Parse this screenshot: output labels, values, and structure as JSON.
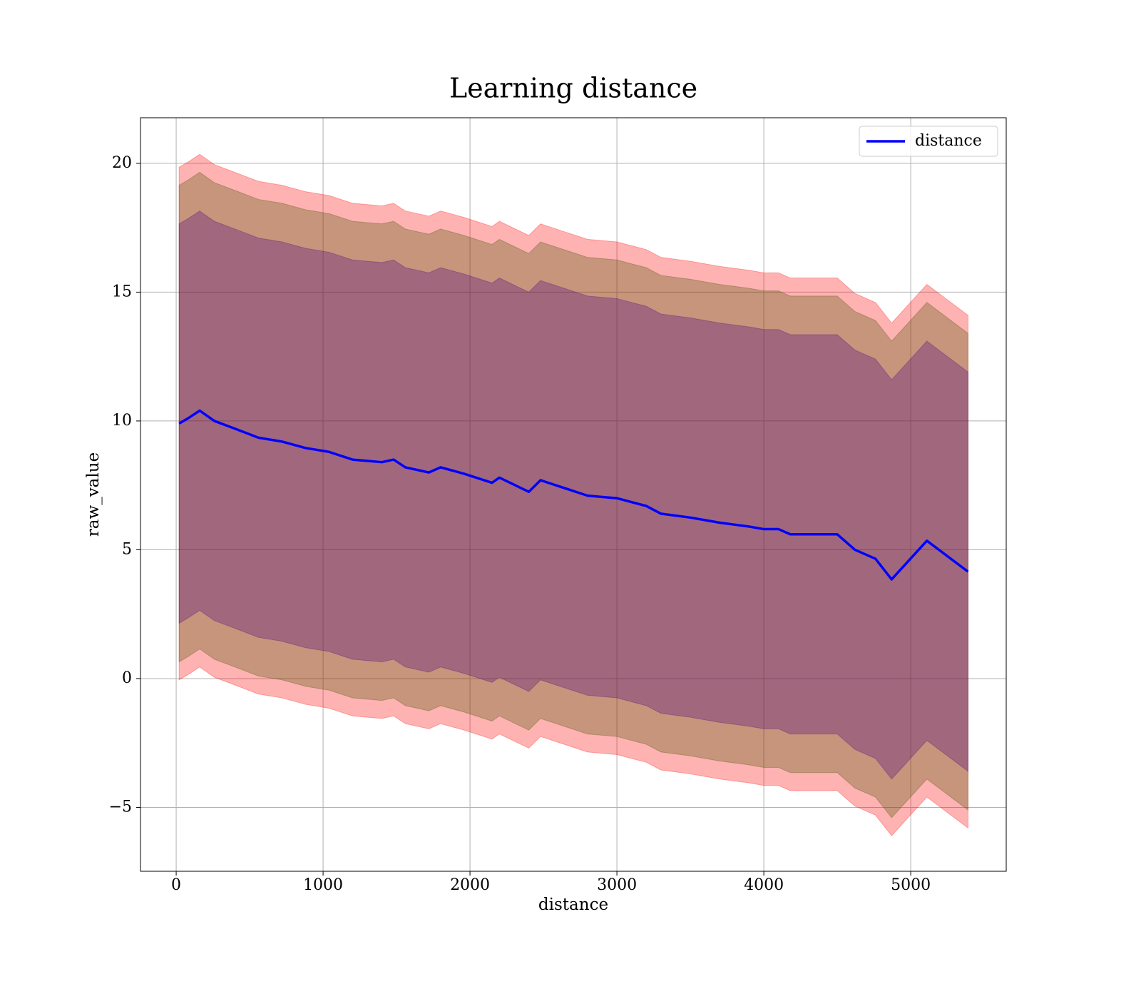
{
  "chart_data": {
    "type": "line",
    "title": "Learning distance",
    "xlabel": "distance",
    "ylabel": "raw_value",
    "x": [
      20,
      80,
      160,
      260,
      400,
      560,
      720,
      880,
      1040,
      1200,
      1400,
      1480,
      1560,
      1720,
      1800,
      1960,
      2150,
      2200,
      2400,
      2480,
      2640,
      2800,
      3000,
      3200,
      3300,
      3500,
      3700,
      3900,
      4000,
      4100,
      4180,
      4350,
      4500,
      4620,
      4760,
      4870,
      5110,
      5390
    ],
    "series": [
      {
        "name": "distance",
        "color": "#0000ff",
        "values": [
          9.9,
          10.1,
          10.4,
          10.0,
          9.7,
          9.35,
          9.2,
          8.95,
          8.8,
          8.5,
          8.4,
          8.5,
          8.2,
          8.0,
          8.2,
          7.95,
          7.6,
          7.8,
          7.25,
          7.7,
          7.4,
          7.1,
          7.0,
          6.7,
          6.4,
          6.25,
          6.05,
          5.9,
          5.8,
          5.8,
          5.6,
          5.6,
          5.6,
          5.0,
          4.65,
          3.85,
          5.35,
          4.15
        ]
      }
    ],
    "bands": [
      {
        "color": "#ff0000",
        "upper": [
          19.85,
          20.05,
          20.35,
          19.95,
          19.65,
          19.3,
          19.15,
          18.9,
          18.75,
          18.45,
          18.35,
          18.45,
          18.15,
          17.95,
          18.15,
          17.9,
          17.55,
          17.75,
          17.2,
          17.65,
          17.35,
          17.05,
          16.95,
          16.65,
          16.35,
          16.2,
          16.0,
          15.85,
          15.75,
          15.75,
          15.55,
          15.55,
          15.55,
          14.95,
          14.6,
          13.8,
          15.3,
          14.1
        ],
        "lower": [
          -0.05,
          0.15,
          0.45,
          0.05,
          -0.25,
          -0.6,
          -0.75,
          -1.0,
          -1.15,
          -1.45,
          -1.55,
          -1.45,
          -1.75,
          -1.95,
          -1.75,
          -2.0,
          -2.35,
          -2.15,
          -2.7,
          -2.25,
          -2.55,
          -2.85,
          -2.95,
          -3.25,
          -3.55,
          -3.7,
          -3.9,
          -4.05,
          -4.15,
          -4.15,
          -4.35,
          -4.35,
          -4.35,
          -4.95,
          -5.3,
          -6.1,
          -4.6,
          -5.8
        ]
      },
      {
        "color": "#415200",
        "upper": [
          19.15,
          19.35,
          19.65,
          19.25,
          18.95,
          18.6,
          18.45,
          18.2,
          18.05,
          17.75,
          17.65,
          17.75,
          17.45,
          17.25,
          17.45,
          17.2,
          16.85,
          17.05,
          16.5,
          16.95,
          16.65,
          16.35,
          16.25,
          15.95,
          15.65,
          15.5,
          15.3,
          15.15,
          15.05,
          15.05,
          14.85,
          14.85,
          14.85,
          14.25,
          13.9,
          13.1,
          14.6,
          13.4
        ],
        "lower": [
          0.65,
          0.85,
          1.15,
          0.75,
          0.45,
          0.1,
          -0.05,
          -0.3,
          -0.45,
          -0.75,
          -0.85,
          -0.75,
          -1.05,
          -1.25,
          -1.05,
          -1.3,
          -1.65,
          -1.45,
          -2.0,
          -1.55,
          -1.85,
          -2.15,
          -2.25,
          -2.55,
          -2.85,
          -3.0,
          -3.2,
          -3.35,
          -3.45,
          -3.45,
          -3.65,
          -3.65,
          -3.65,
          -4.25,
          -4.6,
          -5.4,
          -3.9,
          -5.1
        ]
      },
      {
        "color": "#4b0082",
        "upper": [
          17.65,
          17.85,
          18.15,
          17.75,
          17.45,
          17.1,
          16.95,
          16.7,
          16.55,
          16.25,
          16.15,
          16.25,
          15.95,
          15.75,
          15.95,
          15.7,
          15.35,
          15.55,
          15.0,
          15.45,
          15.15,
          14.85,
          14.75,
          14.45,
          14.15,
          14.0,
          13.8,
          13.65,
          13.55,
          13.55,
          13.35,
          13.35,
          13.35,
          12.75,
          12.4,
          11.6,
          13.1,
          11.9
        ],
        "lower": [
          2.15,
          2.35,
          2.65,
          2.25,
          1.95,
          1.6,
          1.45,
          1.2,
          1.05,
          0.75,
          0.65,
          0.75,
          0.45,
          0.25,
          0.45,
          0.2,
          -0.15,
          0.05,
          -0.5,
          -0.05,
          -0.35,
          -0.65,
          -0.75,
          -1.05,
          -1.35,
          -1.5,
          -1.7,
          -1.85,
          -1.95,
          -1.95,
          -2.15,
          -2.15,
          -2.15,
          -2.75,
          -3.1,
          -3.9,
          -2.4,
          -3.6
        ]
      }
    ],
    "xlim": [
      -243,
      5650
    ],
    "ylim": [
      -7.48,
      21.77
    ],
    "xticks": [
      0,
      1000,
      2000,
      3000,
      4000,
      5000
    ],
    "yticks": [
      {
        "value": -5,
        "label": "−5"
      },
      0,
      5,
      10,
      15,
      20
    ],
    "grid": true,
    "legend": "upper right"
  }
}
